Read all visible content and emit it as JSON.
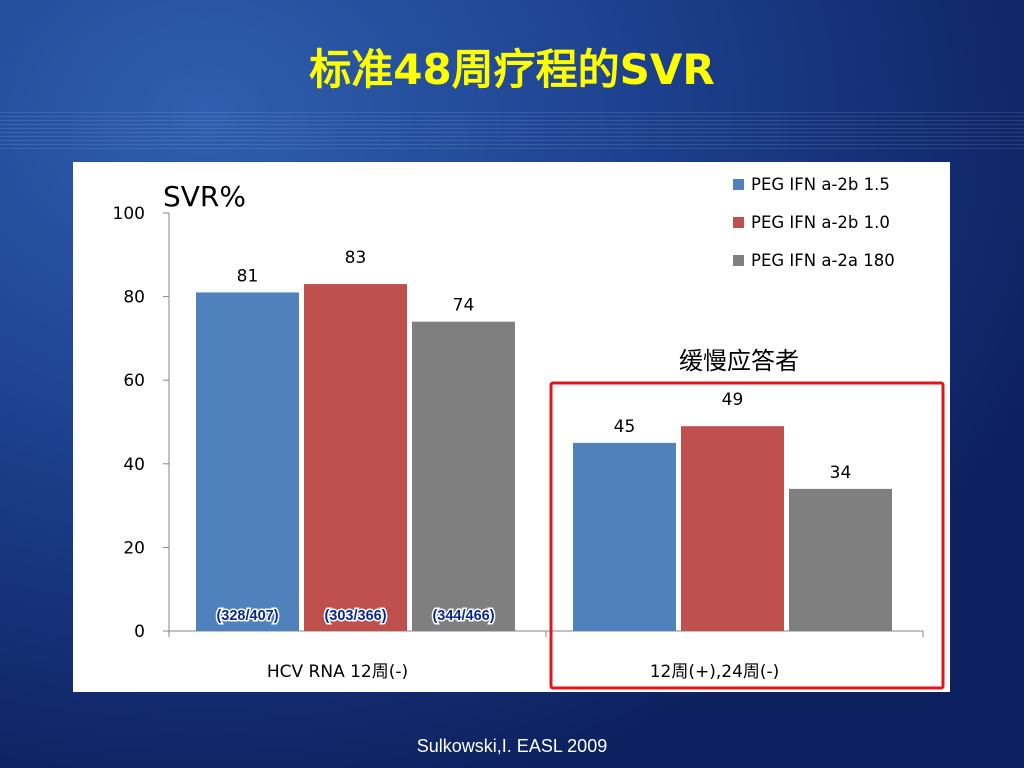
{
  "slide": {
    "title": "标准48周疗程的SVR",
    "source": "Sulkowski,I. EASL 2009"
  },
  "colors": {
    "title": "#ffff00",
    "series_blue": "#4f81bd",
    "series_red": "#c0504d",
    "series_gray": "#7f7f7f",
    "highlight_box": "#e0161d",
    "note_label": "#0a2a8a"
  },
  "chart_data": {
    "type": "bar",
    "ylabel": "SVR%",
    "ylim": [
      0,
      100
    ],
    "yticks": [
      0,
      20,
      40,
      60,
      80,
      100
    ],
    "categories": [
      "HCV RNA 12周(-)",
      "12周(+),24周(-)"
    ],
    "series": [
      {
        "name": "PEG IFN a-2b 1.5",
        "values": [
          81,
          45
        ]
      },
      {
        "name": "PEG IFN a-2b 1.0",
        "values": [
          83,
          49
        ]
      },
      {
        "name": "PEG IFN a-2a 180",
        "values": [
          74,
          34
        ]
      }
    ],
    "bar_notes": [
      "(328/407)",
      "(303/366)",
      "(344/466)"
    ],
    "annotation": "缓慢应答者",
    "legend": "top-right",
    "grid": false
  }
}
